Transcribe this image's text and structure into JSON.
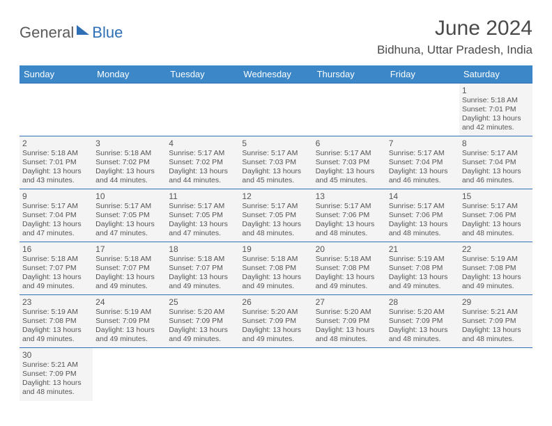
{
  "logo": {
    "text1": "General",
    "text2": "Blue"
  },
  "title": "June 2024",
  "location": "Bidhuna, Uttar Pradesh, India",
  "colors": {
    "header_bg": "#3b87c8",
    "header_text": "#ffffff",
    "border": "#2e6fb5",
    "cell_bg": "#f4f4f4",
    "text": "#555555",
    "logo_gray": "#5a5a5a",
    "logo_blue": "#2e6fb5"
  },
  "fonts": {
    "title_size": 30,
    "location_size": 17,
    "header_size": 13,
    "daynum_size": 12,
    "info_size": 10.5
  },
  "day_headers": [
    "Sunday",
    "Monday",
    "Tuesday",
    "Wednesday",
    "Thursday",
    "Friday",
    "Saturday"
  ],
  "weeks": [
    [
      null,
      null,
      null,
      null,
      null,
      null,
      {
        "n": "1",
        "sr": "5:18 AM",
        "ss": "7:01 PM",
        "dl": "13 hours and 42 minutes."
      }
    ],
    [
      {
        "n": "2",
        "sr": "5:18 AM",
        "ss": "7:01 PM",
        "dl": "13 hours and 43 minutes."
      },
      {
        "n": "3",
        "sr": "5:18 AM",
        "ss": "7:02 PM",
        "dl": "13 hours and 44 minutes."
      },
      {
        "n": "4",
        "sr": "5:17 AM",
        "ss": "7:02 PM",
        "dl": "13 hours and 44 minutes."
      },
      {
        "n": "5",
        "sr": "5:17 AM",
        "ss": "7:03 PM",
        "dl": "13 hours and 45 minutes."
      },
      {
        "n": "6",
        "sr": "5:17 AM",
        "ss": "7:03 PM",
        "dl": "13 hours and 45 minutes."
      },
      {
        "n": "7",
        "sr": "5:17 AM",
        "ss": "7:04 PM",
        "dl": "13 hours and 46 minutes."
      },
      {
        "n": "8",
        "sr": "5:17 AM",
        "ss": "7:04 PM",
        "dl": "13 hours and 46 minutes."
      }
    ],
    [
      {
        "n": "9",
        "sr": "5:17 AM",
        "ss": "7:04 PM",
        "dl": "13 hours and 47 minutes."
      },
      {
        "n": "10",
        "sr": "5:17 AM",
        "ss": "7:05 PM",
        "dl": "13 hours and 47 minutes."
      },
      {
        "n": "11",
        "sr": "5:17 AM",
        "ss": "7:05 PM",
        "dl": "13 hours and 47 minutes."
      },
      {
        "n": "12",
        "sr": "5:17 AM",
        "ss": "7:05 PM",
        "dl": "13 hours and 48 minutes."
      },
      {
        "n": "13",
        "sr": "5:17 AM",
        "ss": "7:06 PM",
        "dl": "13 hours and 48 minutes."
      },
      {
        "n": "14",
        "sr": "5:17 AM",
        "ss": "7:06 PM",
        "dl": "13 hours and 48 minutes."
      },
      {
        "n": "15",
        "sr": "5:17 AM",
        "ss": "7:06 PM",
        "dl": "13 hours and 48 minutes."
      }
    ],
    [
      {
        "n": "16",
        "sr": "5:18 AM",
        "ss": "7:07 PM",
        "dl": "13 hours and 49 minutes."
      },
      {
        "n": "17",
        "sr": "5:18 AM",
        "ss": "7:07 PM",
        "dl": "13 hours and 49 minutes."
      },
      {
        "n": "18",
        "sr": "5:18 AM",
        "ss": "7:07 PM",
        "dl": "13 hours and 49 minutes."
      },
      {
        "n": "19",
        "sr": "5:18 AM",
        "ss": "7:08 PM",
        "dl": "13 hours and 49 minutes."
      },
      {
        "n": "20",
        "sr": "5:18 AM",
        "ss": "7:08 PM",
        "dl": "13 hours and 49 minutes."
      },
      {
        "n": "21",
        "sr": "5:19 AM",
        "ss": "7:08 PM",
        "dl": "13 hours and 49 minutes."
      },
      {
        "n": "22",
        "sr": "5:19 AM",
        "ss": "7:08 PM",
        "dl": "13 hours and 49 minutes."
      }
    ],
    [
      {
        "n": "23",
        "sr": "5:19 AM",
        "ss": "7:08 PM",
        "dl": "13 hours and 49 minutes."
      },
      {
        "n": "24",
        "sr": "5:19 AM",
        "ss": "7:09 PM",
        "dl": "13 hours and 49 minutes."
      },
      {
        "n": "25",
        "sr": "5:20 AM",
        "ss": "7:09 PM",
        "dl": "13 hours and 49 minutes."
      },
      {
        "n": "26",
        "sr": "5:20 AM",
        "ss": "7:09 PM",
        "dl": "13 hours and 49 minutes."
      },
      {
        "n": "27",
        "sr": "5:20 AM",
        "ss": "7:09 PM",
        "dl": "13 hours and 48 minutes."
      },
      {
        "n": "28",
        "sr": "5:20 AM",
        "ss": "7:09 PM",
        "dl": "13 hours and 48 minutes."
      },
      {
        "n": "29",
        "sr": "5:21 AM",
        "ss": "7:09 PM",
        "dl": "13 hours and 48 minutes."
      }
    ],
    [
      {
        "n": "30",
        "sr": "5:21 AM",
        "ss": "7:09 PM",
        "dl": "13 hours and 48 minutes."
      },
      null,
      null,
      null,
      null,
      null,
      null
    ]
  ],
  "labels": {
    "sunrise": "Sunrise: ",
    "sunset": "Sunset: ",
    "daylight": "Daylight: "
  }
}
